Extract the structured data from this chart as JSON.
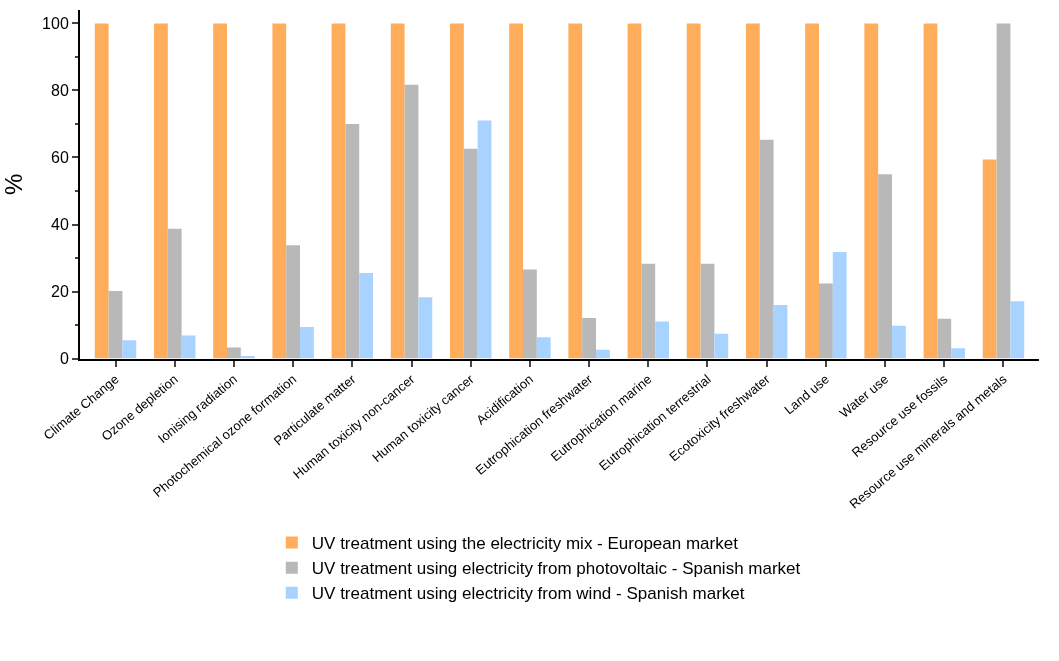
{
  "chart_data": {
    "type": "bar",
    "ylabel": "%",
    "categories": [
      "Climate Change",
      "Ozone depletion",
      "Ionising radiation",
      "Photochemical ozone formation",
      "Particulate matter",
      "Human toxicity non-cancer",
      "Human toxicity cancer",
      "Acidification",
      "Eutrophication freshwater",
      "Eutrophication marine",
      "Eutrophication terrestrial",
      "Ecotoxicity freshwater",
      "Land use",
      "Water use",
      "Resource use fossils",
      "Resource use minerals and metals"
    ],
    "series": [
      {
        "name": "UV treatment using the electricity mix - European market",
        "color": "#ffad5a",
        "values": [
          100,
          100,
          100,
          100,
          100,
          100,
          100,
          100,
          100,
          100,
          100,
          100,
          100,
          100,
          100,
          59.4
        ]
      },
      {
        "name": "UV treatment using electricity from photovoltaic - Spanish market",
        "color": "#b8b8b8",
        "values": [
          20.2,
          38.7,
          3.3,
          33.8,
          70,
          81.7,
          62.6,
          26.6,
          12.1,
          28.3,
          28.3,
          65.3,
          22.4,
          55,
          11.9,
          100
        ]
      },
      {
        "name": "UV treatment using electricity from wind - Spanish market",
        "color": "#a8d2ff",
        "values": [
          5.5,
          6.9,
          0.8,
          9.4,
          25.5,
          18.3,
          71,
          6.4,
          2.6,
          11.1,
          7.4,
          16,
          31.8,
          9.8,
          3.1,
          17.1
        ]
      }
    ],
    "ylim": [
      0,
      104
    ],
    "yticks": [
      0,
      20,
      40,
      60,
      80,
      100
    ],
    "legend": "bottom"
  }
}
